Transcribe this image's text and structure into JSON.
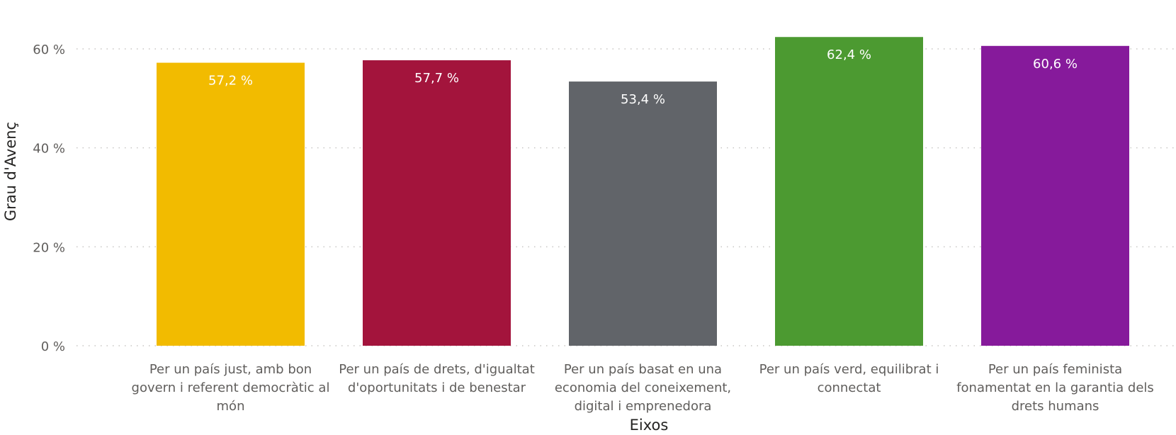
{
  "chart_data": {
    "type": "bar",
    "title": "",
    "xlabel": "Eixos",
    "ylabel": "Grau d'Avenç",
    "ylim": [
      0,
      60
    ],
    "yticks": [
      0,
      20,
      40,
      60
    ],
    "ytick_labels": [
      "0 %",
      "20 %",
      "40 %",
      "60 %"
    ],
    "grid": true,
    "categories": [
      [
        "Per un país just, amb bon",
        "govern i referent democràtic al",
        "món"
      ],
      [
        "Per un país de drets, d'igualtat",
        "d'oportunitats i de benestar"
      ],
      [
        "Per un país basat en una",
        "economia del coneixement,",
        "digital i emprenedora"
      ],
      [
        "Per un país verd, equilibrat i",
        "connectat"
      ],
      [
        "Per un país feminista",
        "fonamentat en la garantia dels",
        "drets humans"
      ]
    ],
    "values": [
      57.2,
      57.7,
      53.4,
      62.4,
      60.6
    ],
    "value_labels": [
      "57,2 %",
      "57,7 %",
      "53,4 %",
      "62,4 %",
      "60,6 %"
    ],
    "colors": [
      "#F2BB00",
      "#A3143C",
      "#616469",
      "#4C9A31",
      "#861A9B"
    ]
  }
}
